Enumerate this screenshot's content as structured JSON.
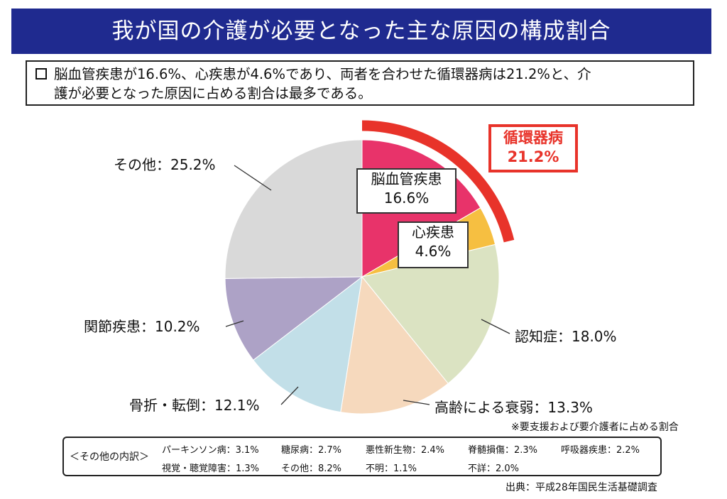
{
  "title": "我が国の介護が必要となった主な原因の構成割合",
  "summary": {
    "line1": "脳血管疾患が16.6%、心疾患が4.6%であり、両者を合わせた循環器病は21.2%と、介",
    "line2": "護が必要となった原因に占める割合は最多である。"
  },
  "chart_data": {
    "type": "pie",
    "start": "12 o'clock",
    "direction": "clockwise",
    "slices": [
      {
        "label": "脳血管疾患",
        "value": 16.6,
        "color": "#e8336a"
      },
      {
        "label": "心疾患",
        "value": 4.6,
        "color": "#f6bf41"
      },
      {
        "label": "認知症",
        "value": 18.0,
        "color": "#dbe3c2"
      },
      {
        "label": "高齢による衰弱",
        "value": 13.3,
        "color": "#f6d9bd"
      },
      {
        "label": "骨折・転倒",
        "value": 12.1,
        "color": "#c2dfe8"
      },
      {
        "label": "関節疾患",
        "value": 10.2,
        "color": "#ada2c6"
      },
      {
        "label": "その他",
        "value": 25.2,
        "color": "#d9d9d9"
      }
    ],
    "group": {
      "name": "循環器病",
      "value": 21.2,
      "color": "#e8332a"
    }
  },
  "labels": {
    "cerebro_name": "脳血管疾患",
    "cerebro_value": "16.6%",
    "heart_name": "心疾患",
    "heart_value": "4.6%",
    "circ_name": "循環器病",
    "circ_value": "21.2%",
    "dementia": "認知症：18.0%",
    "frailty": "高齢による衰弱：13.3%",
    "fracture": "骨折・転倒：12.1%",
    "joint": "関節疾患：10.2%",
    "other": "その他：25.2%"
  },
  "footnote": "※要支援および要介護者に占める割合",
  "others_box": {
    "heading": "＜その他の内訳＞",
    "row1": [
      "パーキンソン病：3.1%",
      "糖尿病：2.7%",
      "悪性新生物：2.4%",
      "脊髄損傷：2.3%",
      "呼吸器疾患：2.2%"
    ],
    "row2": [
      "視覚・聴覚障害：1.3%",
      "その他：8.2%",
      "不明：1.1%",
      "不詳：2.0%"
    ]
  },
  "source": "出典：平成28年国民生活基礎調査"
}
